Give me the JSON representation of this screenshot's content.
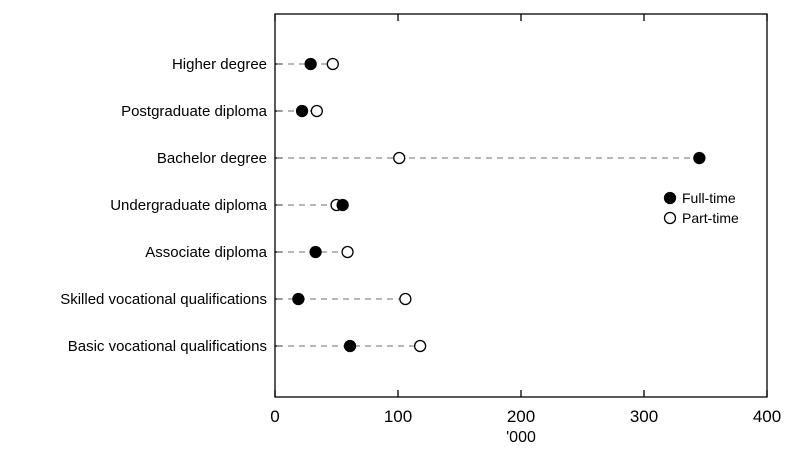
{
  "chart_data": {
    "type": "scatter",
    "title": "",
    "xlabel": "'000",
    "ylabel": "",
    "xlim": [
      0,
      400
    ],
    "xticks": [
      "0",
      "100",
      "200",
      "300",
      "400"
    ],
    "categories": [
      "Higher degree",
      "Postgraduate diploma",
      "Bachelor degree",
      "Undergraduate diploma",
      "Associate diploma",
      "Skilled vocational qualifications",
      "Basic vocational qualifications"
    ],
    "series": [
      {
        "name": "Full-time",
        "marker": "filled-circle",
        "values": [
          29,
          22,
          345,
          55,
          33,
          19,
          61
        ]
      },
      {
        "name": "Part-time",
        "marker": "open-circle",
        "values": [
          47,
          34,
          101,
          50,
          59,
          106,
          118
        ]
      }
    ],
    "connector": "dashed",
    "grid": false,
    "legend_position": "right",
    "colors": {
      "marker_fill": "#000000",
      "connector": "#8c8c8c",
      "axis": "#000000",
      "background": "#ffffff"
    }
  }
}
